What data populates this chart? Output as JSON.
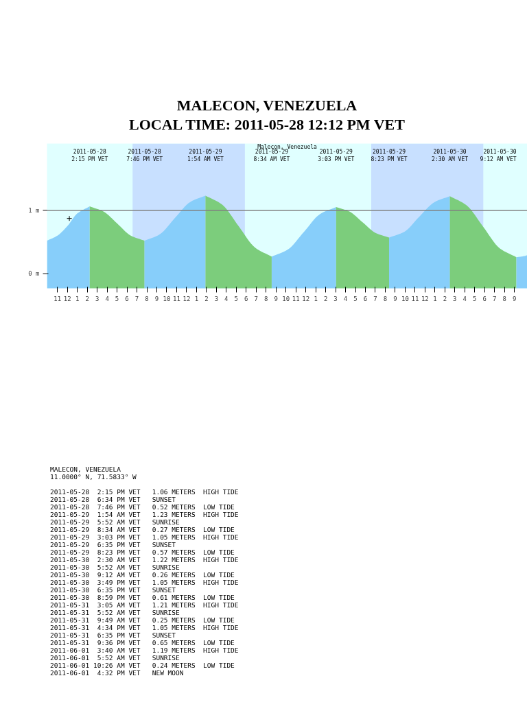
{
  "chart_data": {
    "type": "area",
    "title": "MALECON, VENEZUELA",
    "subtitle": "LOCAL TIME: 2011-05-28 12:12 PM VET",
    "xlim": [
      "2011-05-28T09:57",
      "2011-05-30T10:18"
    ],
    "ylim": [
      -0.23,
      2.05
    ],
    "xticks": [
      {
        "value": "2011-05-28T11:00",
        "label": "11"
      },
      {
        "value": "2011-05-28T12:00",
        "label": "12"
      },
      {
        "value": "2011-05-28T13:00",
        "label": "1"
      },
      {
        "value": "2011-05-28T14:00",
        "label": "2"
      },
      {
        "value": "2011-05-28T15:00",
        "label": "3"
      },
      {
        "value": "2011-05-28T16:00",
        "label": "4"
      },
      {
        "value": "2011-05-28T17:00",
        "label": "5"
      },
      {
        "value": "2011-05-28T18:00",
        "label": "6"
      },
      {
        "value": "2011-05-28T19:00",
        "label": "7"
      },
      {
        "value": "2011-05-28T20:00",
        "label": "8"
      },
      {
        "value": "2011-05-28T21:00",
        "label": "9"
      },
      {
        "value": "2011-05-28T22:00",
        "label": "10"
      },
      {
        "value": "2011-05-28T23:00",
        "label": "11"
      },
      {
        "value": "2011-05-29T00:00",
        "label": "12"
      },
      {
        "value": "2011-05-29T01:00",
        "label": "1"
      },
      {
        "value": "2011-05-29T02:00",
        "label": "2"
      },
      {
        "value": "2011-05-29T03:00",
        "label": "3"
      },
      {
        "value": "2011-05-29T04:00",
        "label": "4"
      },
      {
        "value": "2011-05-29T05:00",
        "label": "5"
      },
      {
        "value": "2011-05-29T06:00",
        "label": "6"
      },
      {
        "value": "2011-05-29T07:00",
        "label": "7"
      },
      {
        "value": "2011-05-29T08:00",
        "label": "8"
      },
      {
        "value": "2011-05-29T09:00",
        "label": "9"
      },
      {
        "value": "2011-05-29T10:00",
        "label": "10"
      },
      {
        "value": "2011-05-29T11:00",
        "label": "11"
      },
      {
        "value": "2011-05-29T12:00",
        "label": "12"
      },
      {
        "value": "2011-05-29T13:00",
        "label": "1"
      },
      {
        "value": "2011-05-29T14:00",
        "label": "2"
      },
      {
        "value": "2011-05-29T15:00",
        "label": "3"
      },
      {
        "value": "2011-05-29T16:00",
        "label": "4"
      },
      {
        "value": "2011-05-29T17:00",
        "label": "5"
      },
      {
        "value": "2011-05-29T18:00",
        "label": "6"
      },
      {
        "value": "2011-05-29T19:00",
        "label": "7"
      },
      {
        "value": "2011-05-29T20:00",
        "label": "8"
      },
      {
        "value": "2011-05-29T21:00",
        "label": "9"
      },
      {
        "value": "2011-05-29T22:00",
        "label": "10"
      },
      {
        "value": "2011-05-29T23:00",
        "label": "11"
      },
      {
        "value": "2011-05-30T00:00",
        "label": "12"
      },
      {
        "value": "2011-05-30T01:00",
        "label": "1"
      },
      {
        "value": "2011-05-30T02:00",
        "label": "2"
      },
      {
        "value": "2011-05-30T03:00",
        "label": "3"
      },
      {
        "value": "2011-05-30T04:00",
        "label": "4"
      },
      {
        "value": "2011-05-30T05:00",
        "label": "5"
      },
      {
        "value": "2011-05-30T06:00",
        "label": "6"
      },
      {
        "value": "2011-05-30T07:00",
        "label": "7"
      },
      {
        "value": "2011-05-30T08:00",
        "label": "8"
      },
      {
        "value": "2011-05-30T09:00",
        "label": "9"
      }
    ],
    "yticks": [
      {
        "value": 0,
        "label": "0 m"
      },
      {
        "value": 1,
        "label": "1 m"
      }
    ],
    "series": [
      {
        "color": "#87cefa",
        "x": [
          "2011-05-28T09:57",
          "2011-05-28T11:00",
          "2011-05-28T12:00",
          "2011-05-28T13:00",
          "2011-05-28T14:15"
        ],
        "values": [
          0.52,
          0.6,
          0.75,
          0.95,
          1.06
        ]
      },
      {
        "color": "#7ccd7c",
        "x": [
          "2011-05-28T14:15",
          "2011-05-28T15:38",
          "2011-05-28T17:01",
          "2011-05-28T18:23",
          "2011-05-28T19:46"
        ],
        "values": [
          1.06,
          0.98,
          0.79,
          0.6,
          0.52
        ]
      },
      {
        "color": "#87cefa",
        "x": [
          "2011-05-28T19:46",
          "2011-05-28T21:18",
          "2011-05-28T22:50",
          "2011-05-29T00:22",
          "2011-05-29T01:54"
        ],
        "values": [
          0.52,
          0.62,
          0.88,
          1.13,
          1.23
        ]
      },
      {
        "color": "#7ccd7c",
        "x": [
          "2011-05-29T01:54",
          "2011-05-29T03:34",
          "2011-05-29T05:14",
          "2011-05-29T06:54",
          "2011-05-29T08:34"
        ],
        "values": [
          1.23,
          1.09,
          0.75,
          0.41,
          0.27
        ]
      },
      {
        "color": "#87cefa",
        "x": [
          "2011-05-29T08:34",
          "2011-05-29T10:11",
          "2011-05-29T11:49",
          "2011-05-29T13:26",
          "2011-05-29T15:03"
        ],
        "values": [
          0.27,
          0.38,
          0.66,
          0.94,
          1.05
        ]
      },
      {
        "color": "#7ccd7c",
        "x": [
          "2011-05-29T15:03",
          "2011-05-29T16:23",
          "2011-05-29T17:43",
          "2011-05-29T19:03",
          "2011-05-29T20:23"
        ],
        "values": [
          1.05,
          0.98,
          0.81,
          0.64,
          0.57
        ]
      },
      {
        "color": "#87cefa",
        "x": [
          "2011-05-29T20:23",
          "2011-05-29T21:55",
          "2011-05-29T23:26",
          "2011-05-30T00:58",
          "2011-05-30T02:30"
        ],
        "values": [
          0.57,
          0.66,
          0.9,
          1.13,
          1.22
        ]
      },
      {
        "color": "#7ccd7c",
        "x": [
          "2011-05-30T02:30",
          "2011-05-30T04:10",
          "2011-05-30T05:51",
          "2011-05-30T07:31",
          "2011-05-30T09:12"
        ],
        "values": [
          1.22,
          1.08,
          0.74,
          0.4,
          0.26
        ]
      },
      {
        "color": "#87cefa",
        "x": [
          "2011-05-30T09:12",
          "2011-05-30T09:45",
          "2011-05-30T10:18"
        ],
        "values": [
          0.26,
          0.27,
          0.29
        ]
      },
      {
        "type": "scatter",
        "color": "#000000",
        "marker": "cross",
        "x": [
          "2011-05-28T12:12"
        ],
        "values": [
          0.87
        ]
      }
    ],
    "bands": [
      {
        "axis": "x",
        "from": "2011-05-28T18:34",
        "to": "2011-05-29T05:52",
        "color": "#c8e0ff"
      },
      {
        "axis": "x",
        "from": "2011-05-29T18:35",
        "to": "2011-05-30T05:52",
        "color": "#c8e0ff"
      }
    ],
    "ref_lines": [
      {
        "axis": "y",
        "value": 1,
        "color": "#808080"
      }
    ],
    "annotations": [
      "Malecon, Venezuela",
      "2011-05-28\n2:15 PM VET",
      "2011-05-28\n7:46 PM VET",
      "2011-05-29\n1:54 AM VET",
      "2011-05-29\n8:34 AM VET",
      "2011-05-29\n3:03 PM VET",
      "2011-05-29\n8:23 PM VET",
      "2011-05-30\n2:30 AM VET",
      "2011-05-30\n9:12 AM VET",
      "MALECON, VENEZUELA",
      "11.0000° N, 71.5833° W",
      "2011-05-28  2:15 PM VET   1.06 METERS  HIGH TIDE",
      "2011-05-28  6:34 PM VET   SUNSET",
      "2011-05-28  7:46 PM VET   0.52 METERS  LOW TIDE",
      "2011-05-29  1:54 AM VET   1.23 METERS  HIGH TIDE",
      "2011-05-29  5:52 AM VET   SUNRISE",
      "2011-05-29  8:34 AM VET   0.27 METERS  LOW TIDE",
      "2011-05-29  3:03 PM VET   1.05 METERS  HIGH TIDE",
      "2011-05-29  6:35 PM VET   SUNSET",
      "2011-05-29  8:23 PM VET   0.57 METERS  LOW TIDE",
      "2011-05-30  2:30 AM VET   1.22 METERS  HIGH TIDE",
      "2011-05-30  5:52 AM VET   SUNRISE",
      "2011-05-30  9:12 AM VET   0.26 METERS  LOW TIDE",
      "2011-05-30  3:49 PM VET   1.05 METERS  HIGH TIDE",
      "2011-05-30  6:35 PM VET   SUNSET",
      "2011-05-30  8:59 PM VET   0.61 METERS  LOW TIDE",
      "2011-05-31  3:05 AM VET   1.21 METERS  HIGH TIDE",
      "2011-05-31  5:52 AM VET   SUNRISE",
      "2011-05-31  9:49 AM VET   0.25 METERS  LOW TIDE",
      "2011-05-31  4:34 PM VET   1.05 METERS  HIGH TIDE",
      "2011-05-31  6:35 PM VET   SUNSET",
      "2011-05-31  9:36 PM VET   0.65 METERS  LOW TIDE",
      "2011-06-01  3:40 AM VET   1.19 METERS  HIGH TIDE",
      "2011-06-01  5:52 AM VET   SUNRISE",
      "2011-06-01 10:26 AM VET   0.24 METERS  LOW TIDE",
      "2011-06-01  4:32 PM VET   NEW MOON"
    ]
  }
}
